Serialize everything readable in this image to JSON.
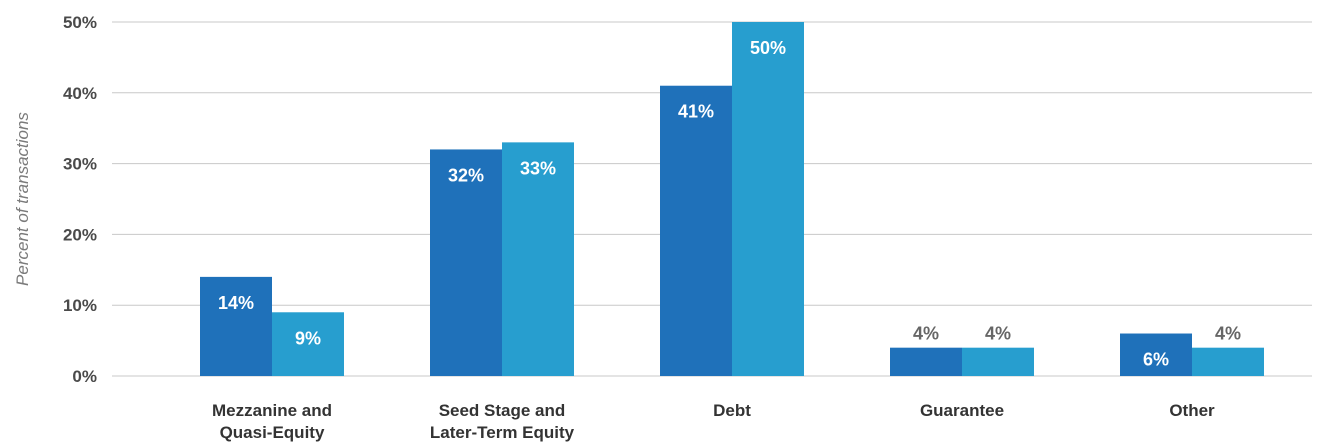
{
  "chart_data": {
    "type": "bar",
    "ylabel": "Percent of transactions",
    "ylim": [
      0,
      50
    ],
    "yticks": [
      "0%",
      "10%",
      "20%",
      "30%",
      "40%",
      "50%"
    ],
    "grid": true,
    "categories": [
      [
        "Mezzanine and",
        "Quasi-Equity"
      ],
      [
        "Seed Stage and",
        "Later-Term Equity"
      ],
      [
        "Debt"
      ],
      [
        "Guarantee"
      ],
      [
        "Other"
      ]
    ],
    "series": [
      {
        "values": [
          14,
          32,
          41,
          4,
          6
        ],
        "labels": [
          "14%",
          "32%",
          "41%",
          "4%",
          "6%"
        ],
        "color": "#1f71ba"
      },
      {
        "values": [
          9,
          33,
          50,
          4,
          4
        ],
        "labels": [
          "9%",
          "33%",
          "50%",
          "4%",
          "4%"
        ],
        "color": "#279ecf"
      }
    ],
    "label_inside_color": "#ffffff",
    "label_outside_color": "#666666",
    "grid_color": "#c8c8c8"
  }
}
